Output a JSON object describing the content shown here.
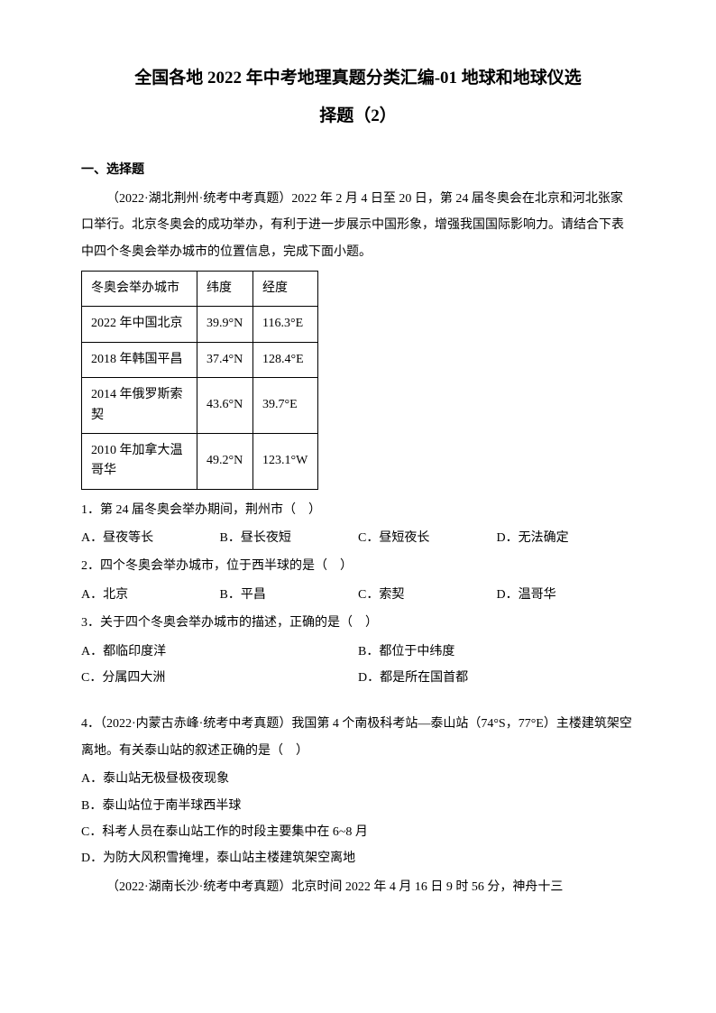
{
  "title_line1": "全国各地 2022 年中考地理真题分类汇编-01 地球和地球仪选",
  "title_line2": "择题（2）",
  "section_heading": "一、选择题",
  "intro1": "（2022·湖北荆州·统考中考真题）2022 年 2 月 4 日至 20 日，第 24 届冬奥会在北京和河北张家口举行。北京冬奥会的成功举办，有利于进一步展示中国形象，增强我国国际影响力。请结合下表中四个冬奥会举办城市的位置信息，完成下面小题。",
  "table": {
    "headers": [
      "冬奥会举办城市",
      "纬度",
      "经度"
    ],
    "rows": [
      [
        "2022 年中国北京",
        "39.9°N",
        "116.3°E"
      ],
      [
        "2018 年韩国平昌",
        "37.4°N",
        "128.4°E"
      ],
      [
        "2014 年俄罗斯索契",
        "43.6°N",
        "39.7°E"
      ],
      [
        "2010 年加拿大温哥华",
        "49.2°N",
        "123.1°W"
      ]
    ]
  },
  "q1": {
    "text": "1．第 24 届冬奥会举办期间，荆州市（　）",
    "opts": [
      "A．昼夜等长",
      "B．昼长夜短",
      "C．昼短夜长",
      "D．无法确定"
    ]
  },
  "q2": {
    "text": "2．四个冬奥会举办城市，位于西半球的是（　）",
    "opts": [
      "A．北京",
      "B．平昌",
      "C．索契",
      "D．温哥华"
    ]
  },
  "q3": {
    "text": "3．关于四个冬奥会举办城市的描述，正确的是（　）",
    "opts": [
      "A．都临印度洋",
      "B．都位于中纬度",
      "C．分属四大洲",
      "D．都是所在国首都"
    ]
  },
  "q4": {
    "text": "4．（2022·内蒙古赤峰·统考中考真题）我国第 4 个南极科考站—泰山站（74°S，77°E）主楼建筑架空离地。有关泰山站的叙述正确的是（　）",
    "opts": [
      "A．泰山站无极昼极夜现象",
      "B．泰山站位于南半球西半球",
      "C．科考人员在泰山站工作的时段主要集中在 6~8 月",
      "D．为防大风积雪掩埋，泰山站主楼建筑架空离地"
    ]
  },
  "last_intro": "（2022·湖南长沙·统考中考真题）北京时间 2022 年 4 月 16 日 9 时 56 分，神舟十三"
}
